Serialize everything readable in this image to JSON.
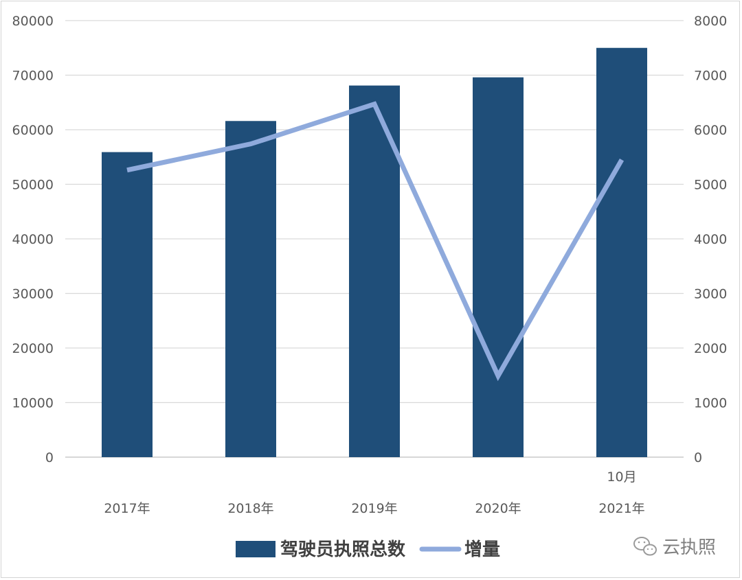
{
  "chart_data": {
    "type": "bar",
    "categories": [
      "2017年",
      "2018年",
      "2019年",
      "2020年",
      "2021年"
    ],
    "category_note": {
      "index": 4,
      "text": "10月"
    },
    "series": [
      {
        "name": "驾驶员执照总数",
        "type": "bar",
        "axis": "left",
        "color": "#1f4e79",
        "values": [
          55900,
          61600,
          68100,
          69600,
          75000
        ]
      },
      {
        "name": "增量",
        "type": "line",
        "axis": "right",
        "color": "#8faadc",
        "values": [
          5260,
          5740,
          6470,
          1490,
          5450
        ]
      }
    ],
    "y_left": {
      "min": 0,
      "max": 80000,
      "ticks": [
        0,
        10000,
        20000,
        30000,
        40000,
        50000,
        60000,
        70000,
        80000
      ]
    },
    "y_right": {
      "min": 0,
      "max": 8000,
      "ticks": [
        0,
        1000,
        2000,
        3000,
        4000,
        5000,
        6000,
        7000,
        8000
      ]
    },
    "grid": true,
    "legend_position": "bottom"
  },
  "watermark": {
    "text": "云执照",
    "icon": "wechat-icon"
  }
}
